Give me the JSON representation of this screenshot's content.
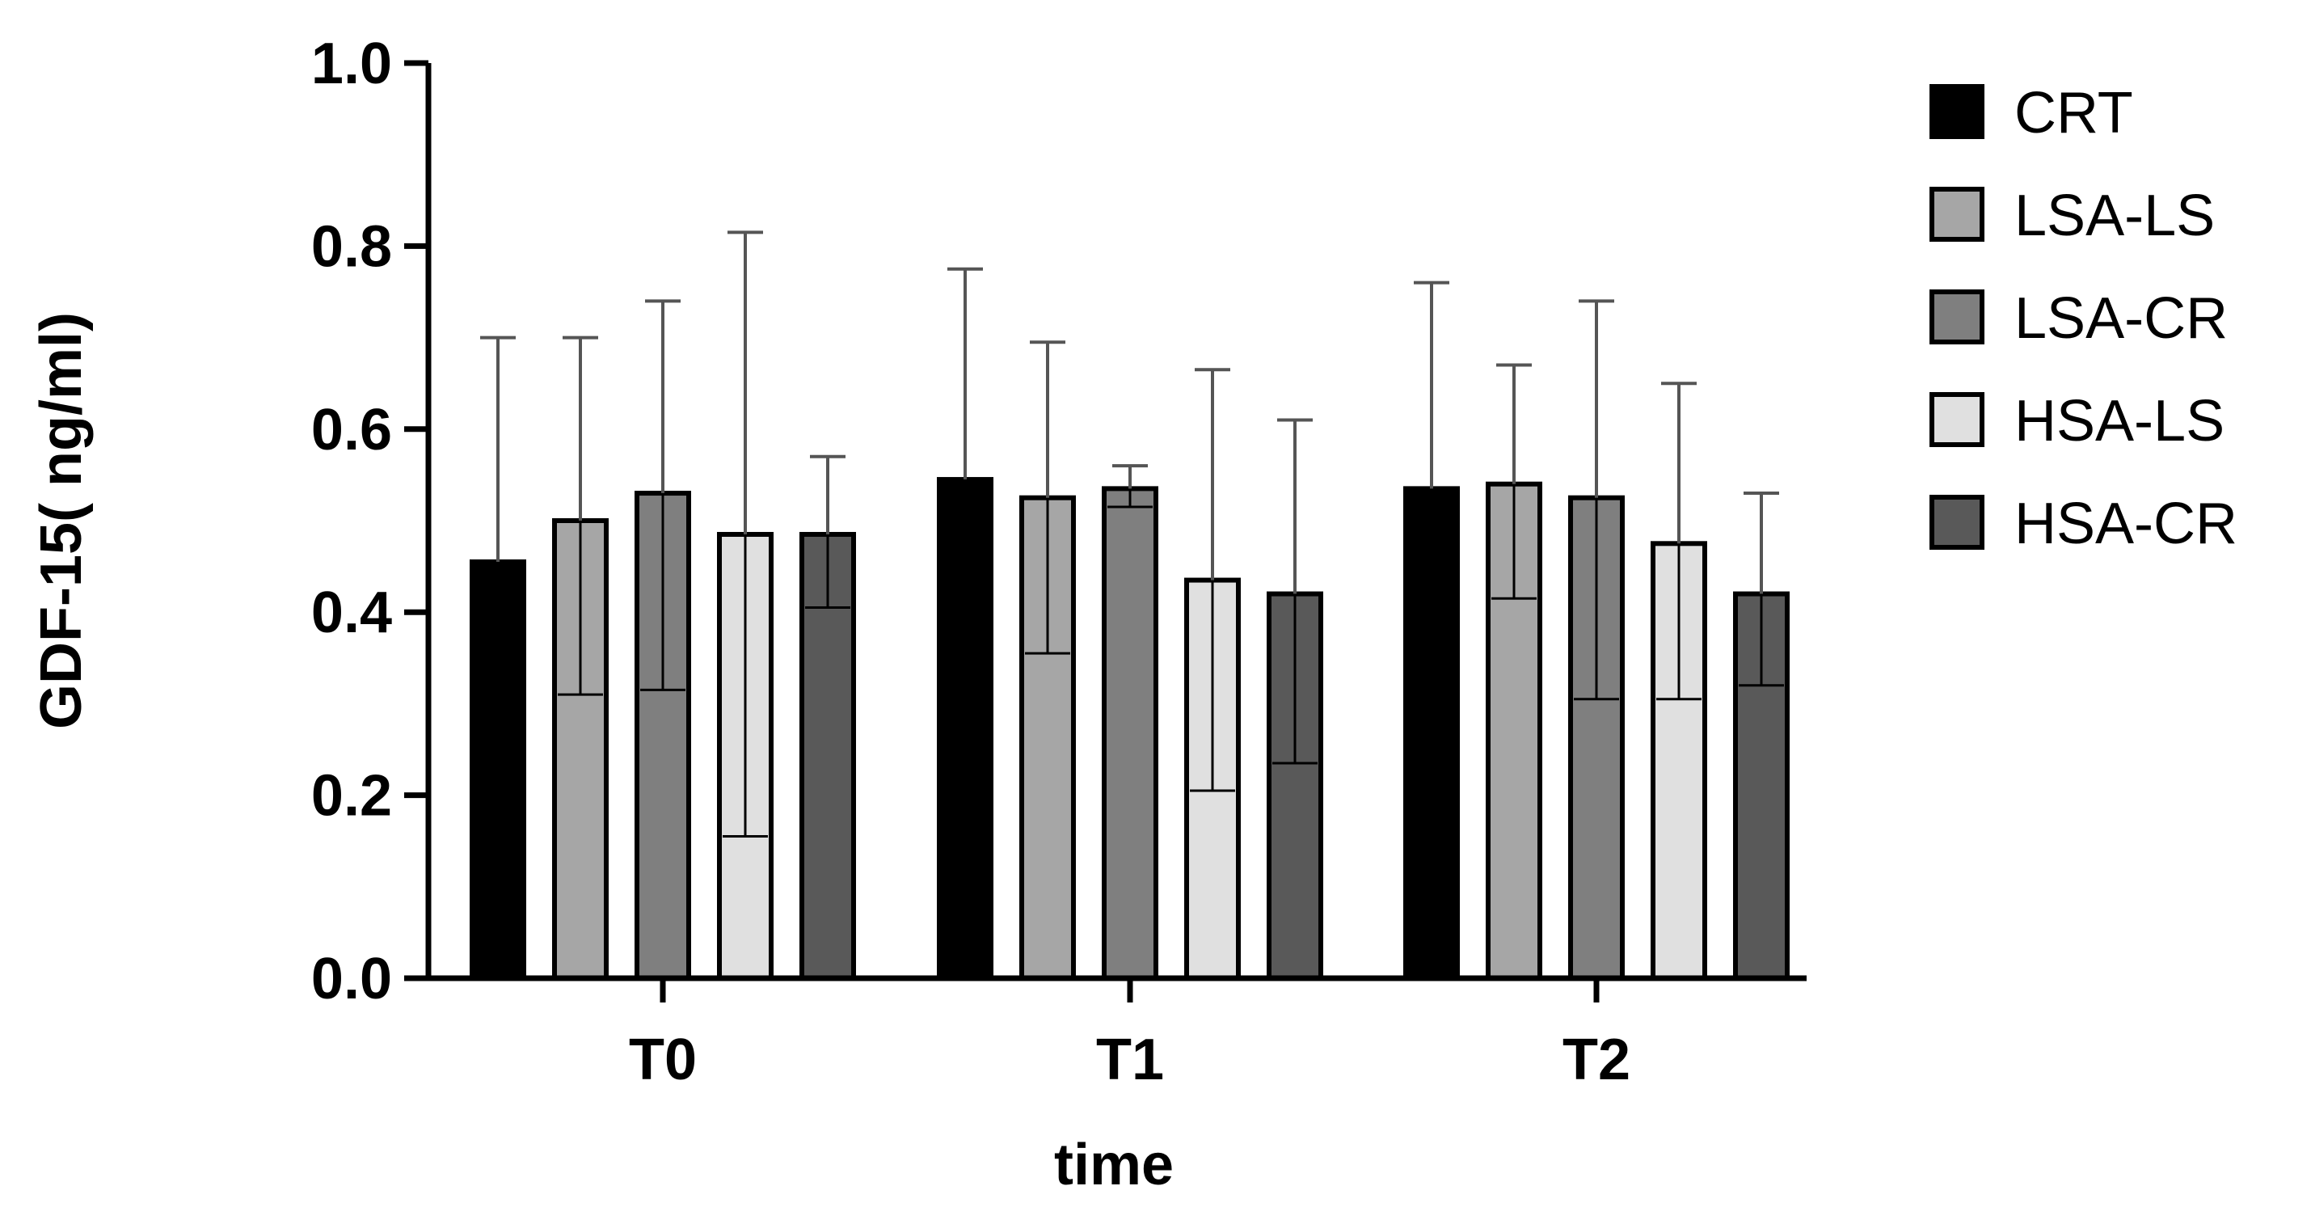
{
  "chart_data": {
    "type": "bar",
    "title": "",
    "xlabel": "time",
    "ylabel": "GDF-15( ng/ml)",
    "ylim": [
      0,
      1.0
    ],
    "yticks": [
      "0.0",
      "0.2",
      "0.4",
      "0.6",
      "0.8",
      "1.0"
    ],
    "categories": [
      "T0",
      "T1",
      "T2"
    ],
    "grid": false,
    "legend_position": "right",
    "series": [
      {
        "name": "CRT",
        "color": "#000000",
        "values": [
          0.455,
          0.545,
          0.535
        ],
        "error_upper": [
          0.7,
          0.775,
          0.76
        ],
        "inner_line": [
          null,
          null,
          null
        ]
      },
      {
        "name": "LSA-LS",
        "color": "#a6a6a6",
        "values": [
          0.5,
          0.525,
          0.54
        ],
        "error_upper": [
          0.7,
          0.695,
          0.67
        ],
        "inner_line": [
          0.31,
          0.355,
          0.415
        ]
      },
      {
        "name": "LSA-CR",
        "color": "#7f7f7f",
        "values": [
          0.53,
          0.535,
          0.525
        ],
        "error_upper": [
          0.74,
          0.56,
          0.74
        ],
        "inner_line": [
          0.315,
          0.515,
          0.305
        ]
      },
      {
        "name": "HSA-LS",
        "color": "#e0e0e0",
        "values": [
          0.485,
          0.435,
          0.475
        ],
        "error_upper": [
          0.815,
          0.665,
          0.65
        ],
        "inner_line": [
          0.155,
          0.205,
          0.305
        ]
      },
      {
        "name": "HSA-CR",
        "color": "#595959",
        "values": [
          0.485,
          0.42,
          0.42
        ],
        "error_upper": [
          0.57,
          0.61,
          0.53
        ],
        "inner_line": [
          0.405,
          0.235,
          0.32
        ]
      }
    ]
  }
}
